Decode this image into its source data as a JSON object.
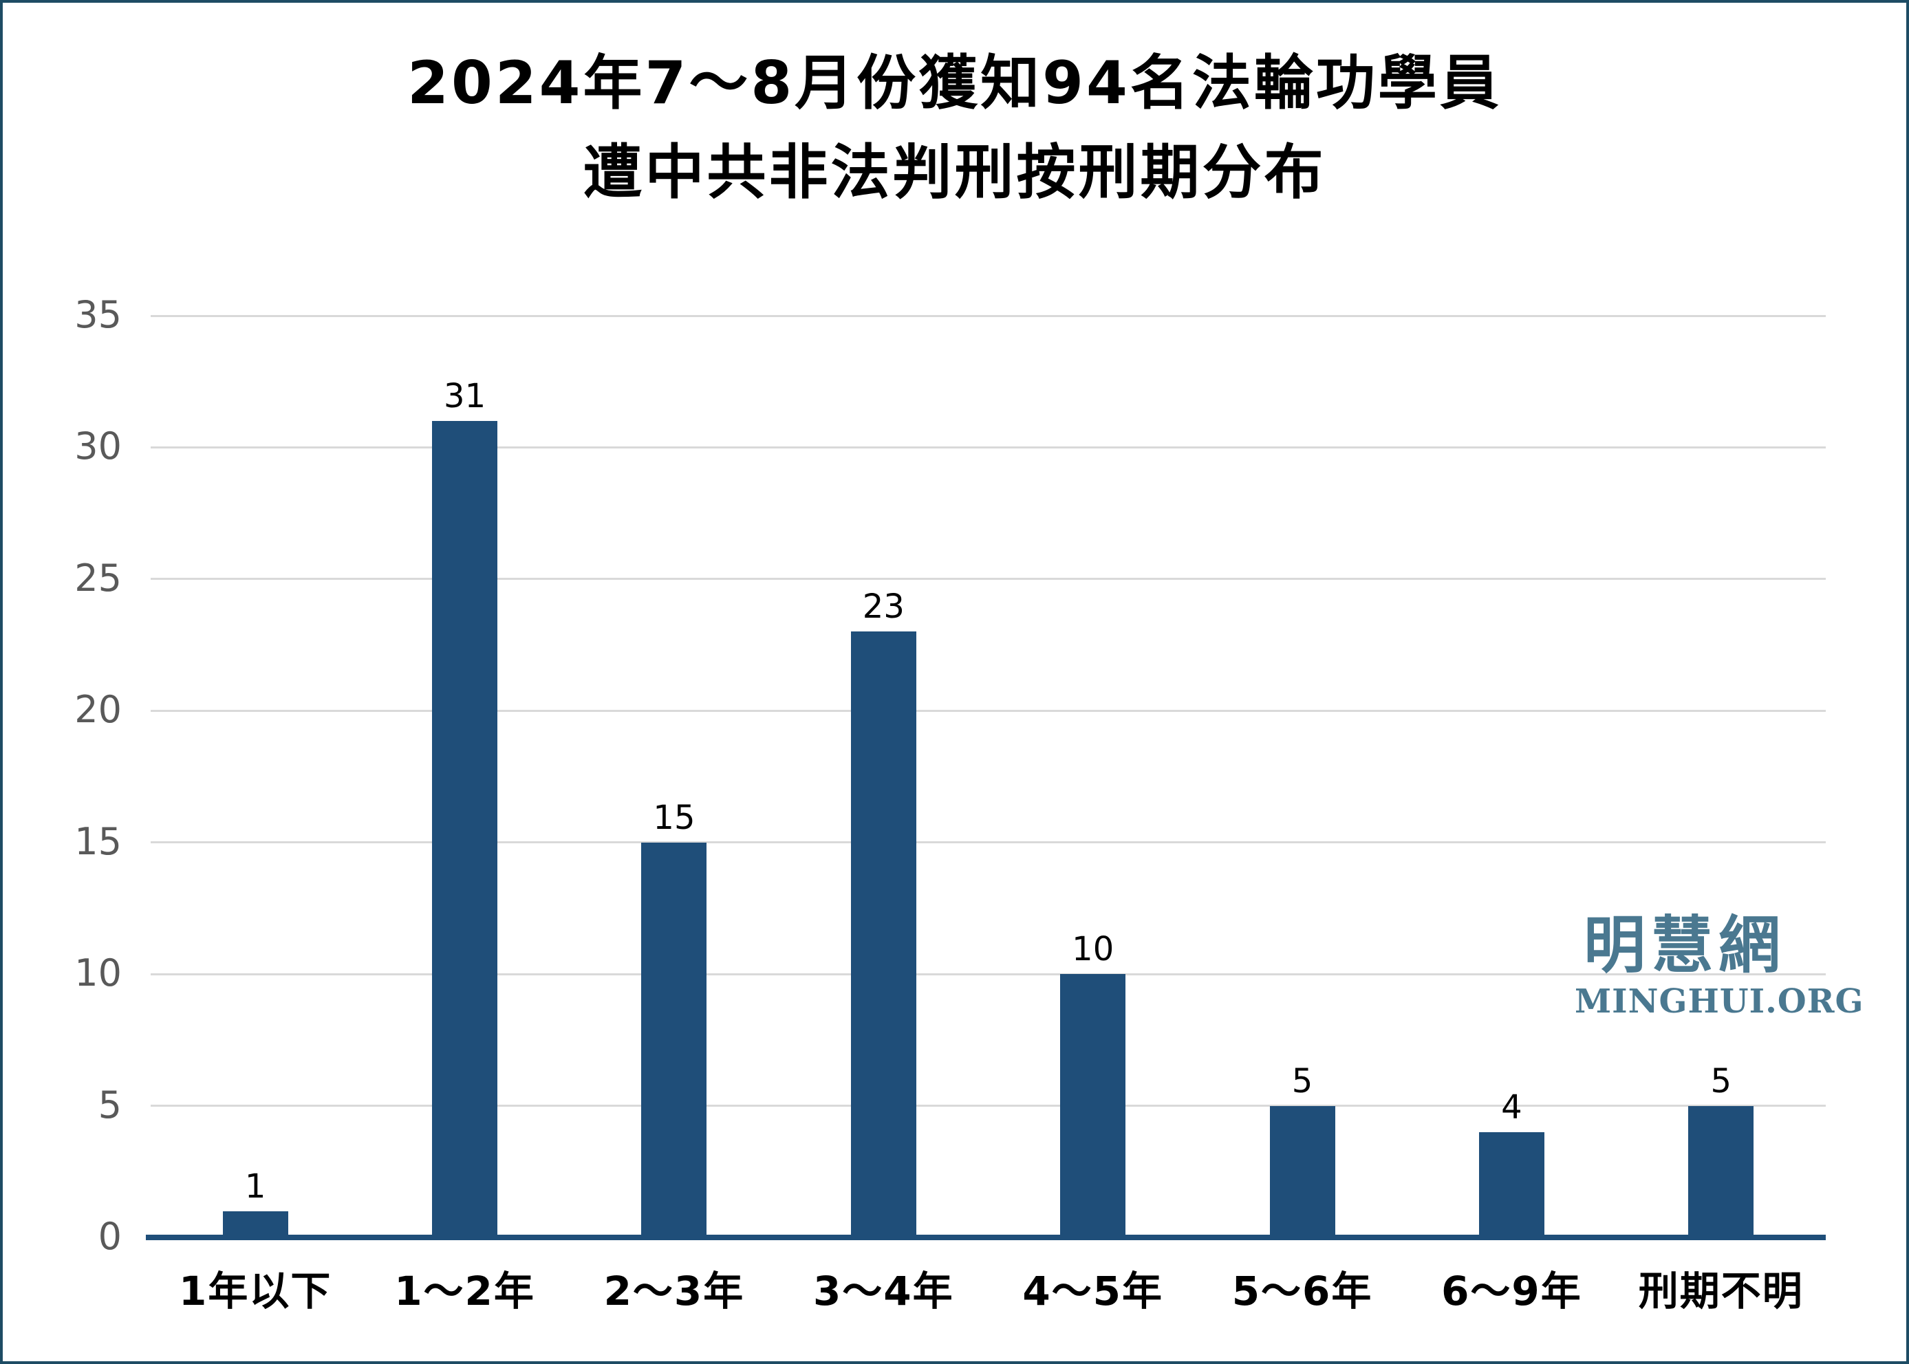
{
  "title": {
    "line1": "2024年7～8月份獲知94名法輪功學員",
    "line2": "遭中共非法判刑按刑期分布"
  },
  "watermark": {
    "cjk": "明慧網",
    "latin": "MINGHUI.ORG",
    "color": "#4A7890"
  },
  "colors": {
    "bar": "#1F4E79",
    "axis_line": "#1F4E79",
    "gridline": "#d9d9d9",
    "tick_label": "#595959",
    "value_label": "#000000",
    "category_label": "#000000",
    "frame_border": "#1E4C64",
    "background": "#ffffff"
  },
  "chart_data": {
    "type": "bar",
    "title": "2024年7～8月份獲知94名法輪功學員遭中共非法判刑按刑期分布",
    "categories": [
      "1年以下",
      "1～2年",
      "2～3年",
      "3～4年",
      "4～5年",
      "5～6年",
      "6～9年",
      "刑期不明"
    ],
    "values": [
      1,
      31,
      15,
      23,
      10,
      5,
      4,
      5
    ],
    "xlabel": "",
    "ylabel": "",
    "ylim": [
      0,
      35
    ],
    "yticks": [
      0,
      5,
      10,
      15,
      20,
      25,
      30,
      35
    ],
    "grid": "horizontal-only",
    "legend": "none",
    "bar_color": "#1F4E79",
    "value_labels_shown": true
  }
}
